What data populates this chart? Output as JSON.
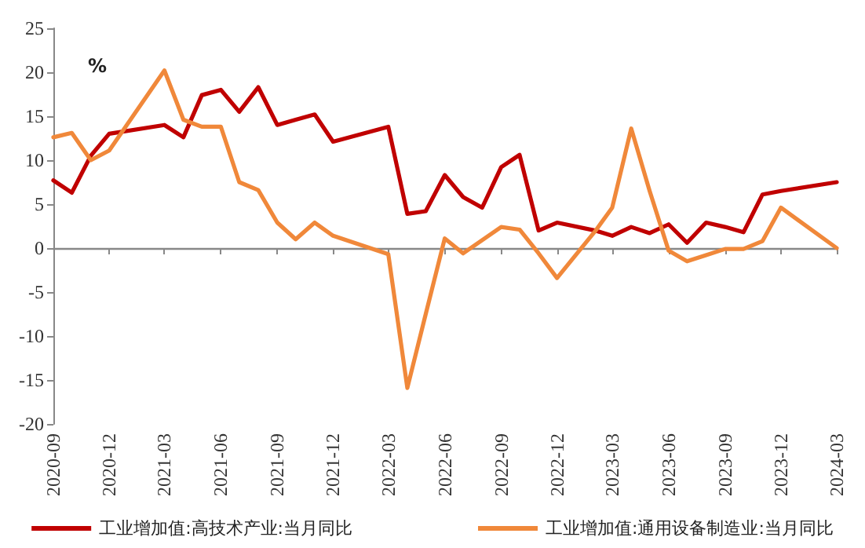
{
  "chart_data": {
    "type": "line",
    "x": [
      "2020-09",
      "2020-10",
      "2020-11",
      "2020-12",
      "2021-03",
      "2021-04",
      "2021-05",
      "2021-06",
      "2021-07",
      "2021-08",
      "2021-09",
      "2021-10",
      "2021-11",
      "2021-12",
      "2022-03",
      "2022-04",
      "2022-05",
      "2022-06",
      "2022-07",
      "2022-08",
      "2022-09",
      "2022-10",
      "2022-11",
      "2022-12",
      "2023-02",
      "2023-03",
      "2023-04",
      "2023-05",
      "2023-06",
      "2023-07",
      "2023-08",
      "2023-09",
      "2023-10",
      "2023-11",
      "2023-12",
      "2024-03"
    ],
    "series": [
      {
        "name": "工业增加值:高技术产业:当月同比",
        "color": "#c00000",
        "values": [
          7.7,
          6.3,
          10.5,
          13.0,
          14.0,
          12.6,
          17.4,
          18.0,
          15.5,
          18.3,
          14.0,
          14.6,
          15.2,
          12.1,
          13.8,
          3.9,
          4.2,
          8.3,
          5.8,
          4.6,
          9.2,
          10.6,
          2.0,
          2.9,
          2.0,
          1.4,
          2.4,
          1.7,
          2.7,
          0.6,
          2.9,
          2.4,
          1.8,
          6.1,
          6.5,
          7.5
        ]
      },
      {
        "name": "工业增加值:通用设备制造业:当月同比",
        "color": "#f0883a",
        "values": [
          12.6,
          13.1,
          10.0,
          11.1,
          20.2,
          14.6,
          13.8,
          13.8,
          7.5,
          6.6,
          2.9,
          1.0,
          2.9,
          1.4,
          -0.7,
          -15.9,
          -7.5,
          1.1,
          -0.6,
          0.9,
          2.4,
          2.1,
          -0.6,
          -3.4,
          1.9,
          4.6,
          13.6,
          6.5,
          -0.3,
          -1.5,
          -0.8,
          -0.1,
          -0.1,
          0.8,
          4.6,
          0.0
        ]
      }
    ],
    "xlim": [
      "2020-09",
      "2024-03"
    ],
    "xticks": [
      "2020-09",
      "2020-12",
      "2021-03",
      "2021-06",
      "2021-09",
      "2021-12",
      "2022-03",
      "2022-06",
      "2022-09",
      "2022-12",
      "2023-03",
      "2023-06",
      "2023-09",
      "2023-12",
      "2024-03"
    ],
    "ylim": [
      -20,
      25
    ],
    "yticks": [
      -20,
      -15,
      -10,
      -5,
      0,
      5,
      10,
      15,
      20,
      25
    ],
    "annotations": [
      "%"
    ],
    "legend": "bottom",
    "marker": "none",
    "line_style": "solid"
  }
}
